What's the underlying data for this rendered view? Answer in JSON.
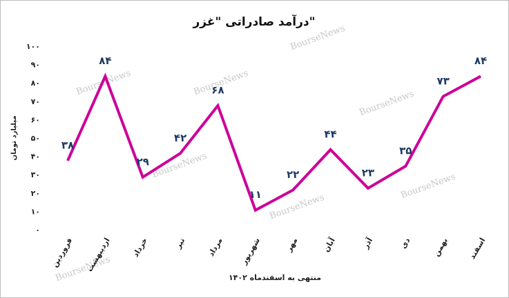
{
  "chart_data": {
    "type": "line",
    "title": "درآمد صادراتی \"غزر\"",
    "y_label": "میلیارد تومان",
    "x_label": "منتهی به اسفندماه ۱۴۰۲",
    "watermark": "BourseNews",
    "categories": [
      "فروردین",
      "اردیبهشت",
      "خرداد",
      "تیر",
      "مرداد",
      "شهریور",
      "مهر",
      "آبان",
      "آذر",
      "دی",
      "بهمن",
      "اسفند"
    ],
    "series": [
      {
        "color": "#cc0099",
        "values": [
          38,
          84,
          29,
          42,
          68,
          11,
          22,
          44,
          23,
          35,
          73,
          84
        ],
        "value_labels": [
          "۳۸",
          "۸۴",
          "۲۹",
          "۴۲",
          "۶۸",
          "۱۱",
          "۲۲",
          "۴۴",
          "۲۳",
          "۳۵",
          "۷۳",
          "۸۴"
        ]
      }
    ],
    "ylim": [
      0,
      100
    ],
    "yticks": [
      {
        "value": 0,
        "label": "۰"
      },
      {
        "value": 10,
        "label": "۱۰"
      },
      {
        "value": 20,
        "label": "۲۰"
      },
      {
        "value": 30,
        "label": "۳۰"
      },
      {
        "value": 40,
        "label": "۴۰"
      },
      {
        "value": 50,
        "label": "۵۰"
      },
      {
        "value": 60,
        "label": "۶۰"
      },
      {
        "value": 70,
        "label": "۷۰"
      },
      {
        "value": 80,
        "label": "۸۰"
      },
      {
        "value": 90,
        "label": "۹۰"
      },
      {
        "value": 100,
        "label": "۱۰۰"
      }
    ],
    "grid": false
  }
}
